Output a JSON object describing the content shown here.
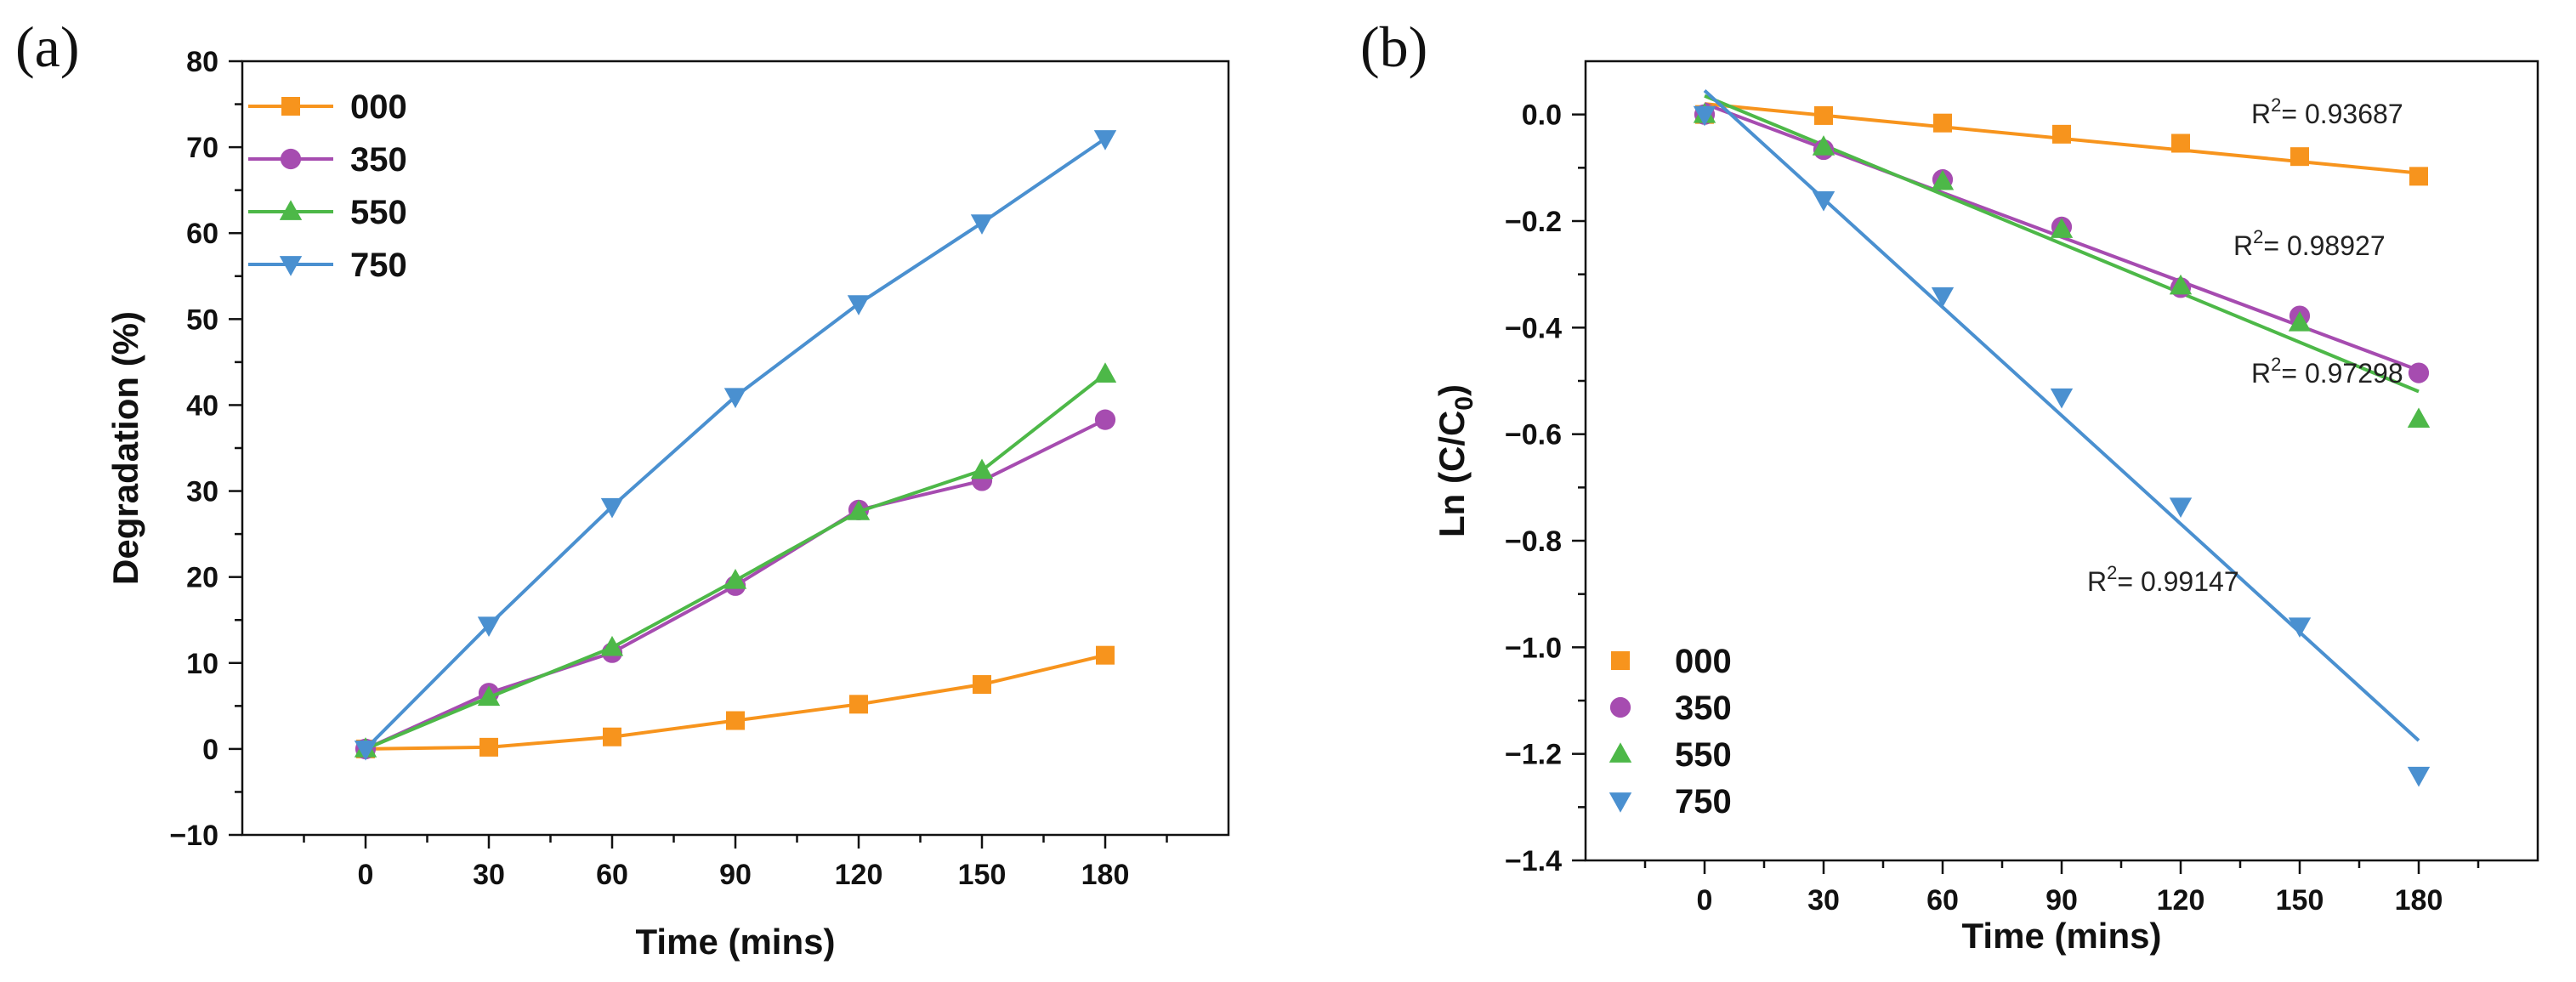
{
  "chart_data": [
    {
      "panel_label": "(a)",
      "type": "line",
      "xlabel": "Time (mins)",
      "ylabel": "Degradation (%)",
      "xlim": [
        -30,
        210
      ],
      "ylim": [
        -10,
        80
      ],
      "x_ticks": [
        0,
        30,
        60,
        90,
        120,
        150,
        180
      ],
      "y_ticks": [
        -10,
        0,
        10,
        20,
        30,
        40,
        50,
        60,
        70,
        80
      ],
      "x": [
        0,
        30,
        60,
        90,
        120,
        150,
        180
      ],
      "legend_position": "top-left",
      "series": [
        {
          "name": "000",
          "color": "#F7941D",
          "marker": "square",
          "values": [
            0,
            0.2,
            1.4,
            3.3,
            5.2,
            7.5,
            10.9
          ]
        },
        {
          "name": "350",
          "color": "#A64CB0",
          "marker": "circle",
          "values": [
            0,
            6.5,
            11.2,
            19.0,
            27.8,
            31.2,
            38.3
          ]
        },
        {
          "name": "550",
          "color": "#4DB848",
          "marker": "triangle",
          "values": [
            0,
            6.0,
            11.8,
            19.6,
            27.6,
            32.4,
            43.6
          ]
        },
        {
          "name": "750",
          "color": "#4A90D0",
          "marker": "triangle-down",
          "values": [
            0,
            14.4,
            28.2,
            41.0,
            51.8,
            61.2,
            71.0
          ]
        }
      ]
    },
    {
      "panel_label": "(b)",
      "type": "scatter",
      "xlabel": "Time (mins)",
      "ylabel_main": "Ln (C/C",
      "ylabel_sub": "0",
      "ylabel_end": ")",
      "xlim": [
        -30,
        210
      ],
      "ylim": [
        -1.4,
        0.1
      ],
      "x_ticks": [
        0,
        30,
        60,
        90,
        120,
        150,
        180
      ],
      "y_ticks": [
        -1.4,
        -1.2,
        -1.0,
        -0.8,
        -0.6,
        -0.4,
        -0.2,
        0.0
      ],
      "y_tick_labels": [
        "−1.4",
        "−1.2",
        "−1.0",
        "−0.8",
        "−0.6",
        "−0.4",
        "−0.2",
        "0.0"
      ],
      "x": [
        0,
        30,
        60,
        90,
        120,
        150,
        180
      ],
      "legend_position": "bottom-left",
      "series": [
        {
          "name": "000",
          "color": "#F7941D",
          "marker": "square",
          "values": [
            0,
            -0.002,
            -0.016,
            -0.037,
            -0.054,
            -0.079,
            -0.116
          ],
          "fit": [
            0.02,
            -0.11
          ],
          "r2_prefix": "R",
          "r2_sup": "2",
          "r2_value": "= 0.93687"
        },
        {
          "name": "350",
          "color": "#A64CB0",
          "marker": "circle",
          "values": [
            0,
            -0.066,
            -0.122,
            -0.211,
            -0.325,
            -0.378,
            -0.485
          ],
          "fit": [
            0.02,
            -0.48
          ],
          "r2_prefix": "R",
          "r2_sup": "2",
          "r2_value": "= 0.98927"
        },
        {
          "name": "550",
          "color": "#4DB848",
          "marker": "triangle",
          "values": [
            0,
            -0.061,
            -0.126,
            -0.216,
            -0.322,
            -0.391,
            -0.572
          ],
          "fit": [
            0.035,
            -0.52
          ],
          "r2_prefix": "R",
          "r2_sup": "2",
          "r2_value": "= 0.97298"
        },
        {
          "name": "750",
          "color": "#4A90D0",
          "marker": "triangle-down",
          "values": [
            0,
            -0.16,
            -0.34,
            -0.53,
            -0.735,
            -0.96,
            -1.24
          ],
          "fit": [
            0.045,
            -1.175
          ],
          "r2_prefix": "R",
          "r2_sup": "2",
          "r2_value": "= 0.99147"
        }
      ]
    }
  ]
}
